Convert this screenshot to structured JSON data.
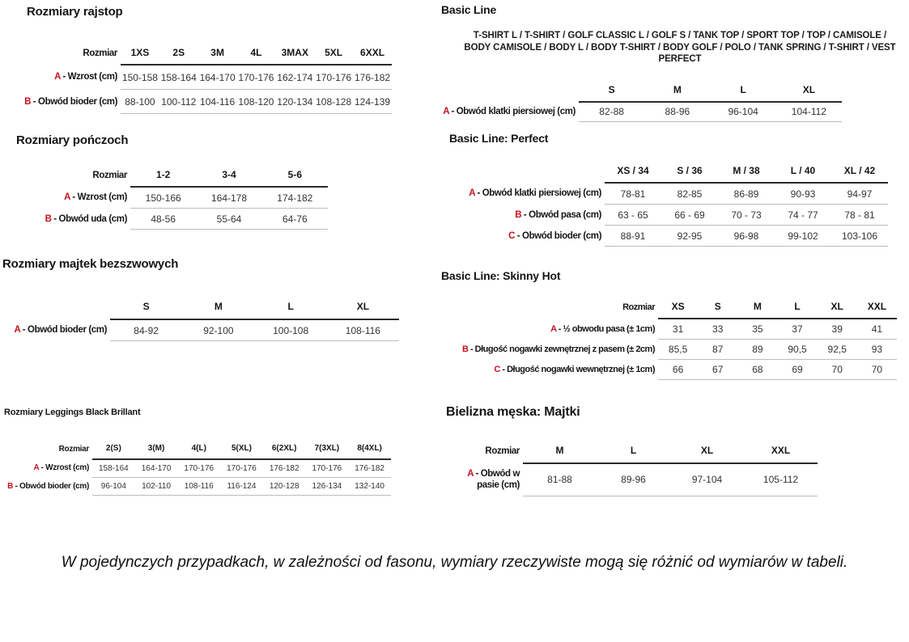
{
  "colors": {
    "accent_red": "#c5121f",
    "text": "#1b1b1b",
    "rule_dark": "#2b2b2b",
    "rule_light": "#bcbcbc"
  },
  "footnote": "W pojedynczych przypadkach, w zależności od fasonu, wymiary rzeczywiste mogą się różnić od wymiarów w tabeli.",
  "sections": {
    "rajstop": {
      "title": "Rozmiary rajstop",
      "corner_label": "Rozmiar",
      "columns": [
        "1XS",
        "2S",
        "3M",
        "4L",
        "3MAX",
        "5XL",
        "6XXL"
      ],
      "rows": [
        {
          "prefix": "A",
          "label": "- Wzrost (cm)",
          "values": [
            "150-158",
            "158-164",
            "164-170",
            "170-176",
            "162-174",
            "170-176",
            "176-182"
          ]
        },
        {
          "prefix": "B",
          "label": "- Obwód bioder (cm)",
          "values": [
            "88-100",
            "100-112",
            "104-116",
            "108-120",
            "120-134",
            "108-128",
            "124-139"
          ]
        }
      ]
    },
    "ponczochy": {
      "title": "Rozmiary pończoch",
      "corner_label": "Rozmiar",
      "columns": [
        "1-2",
        "3-4",
        "5-6"
      ],
      "rows": [
        {
          "prefix": "A",
          "label": "- Wzrost (cm)",
          "values": [
            "150-166",
            "164-178",
            "174-182"
          ]
        },
        {
          "prefix": "B",
          "label": "- Obwód uda (cm)",
          "values": [
            "48-56",
            "55-64",
            "64-76"
          ]
        }
      ]
    },
    "majtki_bezszwowe": {
      "title": "Rozmiary majtek bezszwowych",
      "corner_label": "",
      "columns": [
        "S",
        "M",
        "L",
        "XL"
      ],
      "rows": [
        {
          "prefix": "A",
          "label": "- Obwód bioder (cm)",
          "values": [
            "84-92",
            "92-100",
            "100-108",
            "108-116"
          ]
        }
      ]
    },
    "leggings": {
      "title": "Rozmiary Leggings Black Brillant",
      "corner_label": "Rozmiar",
      "columns": [
        "2(S)",
        "3(M)",
        "4(L)",
        "5(XL)",
        "6(2XL)",
        "7(3XL)",
        "8(4XL)"
      ],
      "rows": [
        {
          "prefix": "A",
          "label": "- Wzrost (cm)",
          "values": [
            "158-164",
            "164-170",
            "170-176",
            "170-176",
            "176-182",
            "170-176",
            "176-182"
          ]
        },
        {
          "prefix": "B",
          "label": "- Obwód bioder (cm)",
          "values": [
            "96-104",
            "102-110",
            "108-116",
            "116-124",
            "120-128",
            "126-134",
            "132-140"
          ]
        }
      ]
    },
    "basic_line": {
      "title": "Basic Line",
      "description": "T-SHIRT L / T-SHIRT / GOLF CLASSIC L / GOLF S / TANK TOP / SPORT TOP / TOP / CAMISOLE / BODY CAMISOLE / BODY L / BODY T-SHIRT / BODY GOLF / POLO / TANK SPRING / T-SHIRT / VEST PERFECT",
      "corner_label": "",
      "columns": [
        "S",
        "M",
        "L",
        "XL"
      ],
      "rows": [
        {
          "prefix": "A",
          "label": "- Obwód klatki piersiowej (cm)",
          "values": [
            "82-88",
            "88-96",
            "96-104",
            "104-112"
          ]
        }
      ]
    },
    "basic_line_perfect": {
      "title": "Basic Line: Perfect",
      "corner_label": "",
      "columns": [
        "XS / 34",
        "S / 36",
        "M / 38",
        "L / 40",
        "XL / 42"
      ],
      "rows": [
        {
          "prefix": "A",
          "label": "- Obwód klatki piersiowej (cm)",
          "values": [
            "78-81",
            "82-85",
            "86-89",
            "90-93",
            "94-97"
          ]
        },
        {
          "prefix": "B",
          "label": "- Obwód pasa (cm)",
          "values": [
            "63 - 65",
            "66 - 69",
            "70 - 73",
            "74 - 77",
            "78 - 81"
          ]
        },
        {
          "prefix": "C",
          "label": "- Obwód bioder (cm)",
          "values": [
            "88-91",
            "92-95",
            "96-98",
            "99-102",
            "103-106"
          ]
        }
      ]
    },
    "basic_line_skinny_hot": {
      "title": "Basic Line: Skinny Hot",
      "corner_label": "Rozmiar",
      "columns": [
        "XS",
        "S",
        "M",
        "L",
        "XL",
        "XXL"
      ],
      "rows": [
        {
          "prefix": "A",
          "label": "- ½ obwodu pasa (± 1cm)",
          "values": [
            "31",
            "33",
            "35",
            "37",
            "39",
            "41"
          ]
        },
        {
          "prefix": "B",
          "label": "- Długość nogawki zewnętrznej z pasem (± 2cm)",
          "values": [
            "85,5",
            "87",
            "89",
            "90,5",
            "92,5",
            "93"
          ]
        },
        {
          "prefix": "C",
          "label": "- Długość nogawki wewnętrznej (± 1cm)",
          "values": [
            "66",
            "67",
            "68",
            "69",
            "70",
            "70"
          ]
        }
      ]
    },
    "bielizna_meska": {
      "title": "Bielizna męska: Majtki",
      "corner_label": "Rozmiar",
      "columns": [
        "M",
        "L",
        "XL",
        "XXL"
      ],
      "rows": [
        {
          "prefix": "A",
          "label": "- Obwód w pasie (cm)",
          "values": [
            "81-88",
            "89-96",
            "97-104",
            "105-112"
          ]
        }
      ]
    }
  }
}
